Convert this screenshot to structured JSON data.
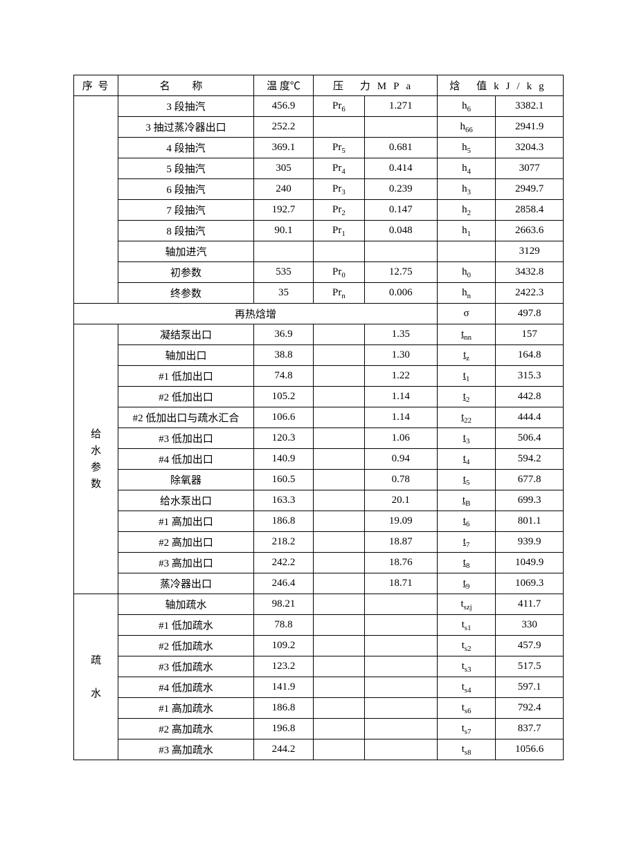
{
  "header": {
    "seq": "序 号",
    "name": "名      称",
    "temp": "温 度℃",
    "pressure": "压   力MPa",
    "enthalpy": "焓   值kJ/kg"
  },
  "section1": [
    {
      "name": "3 段抽汽",
      "temp": "456.9",
      "psym": "Pr",
      "psub": "6",
      "pval": "1.271",
      "hsym": "h",
      "hsub": "6",
      "hval": "3382.1"
    },
    {
      "name": "3 抽过蒸冷器出口",
      "temp": "252.2",
      "psym": "",
      "psub": "",
      "pval": "",
      "hsym": "h",
      "hsub": "66",
      "hval": "2941.9"
    },
    {
      "name": "4 段抽汽",
      "temp": "369.1",
      "psym": "Pr",
      "psub": "5",
      "pval": "0.681",
      "hsym": "h",
      "hsub": "5",
      "hval": "3204.3"
    },
    {
      "name": "5 段抽汽",
      "temp": "305",
      "psym": "Pr",
      "psub": "4",
      "pval": "0.414",
      "hsym": "h",
      "hsub": "4",
      "hval": "3077"
    },
    {
      "name": "6 段抽汽",
      "temp": "240",
      "psym": "Pr",
      "psub": "3",
      "pval": "0.239",
      "hsym": "h",
      "hsub": "3",
      "hval": "2949.7"
    },
    {
      "name": "7 段抽汽",
      "temp": "192.7",
      "psym": "Pr",
      "psub": "2",
      "pval": "0.147",
      "hsym": "h",
      "hsub": "2",
      "hval": "2858.4"
    },
    {
      "name": "8 段抽汽",
      "temp": "90.1",
      "psym": "Pr",
      "psub": "1",
      "pval": "0.048",
      "hsym": "h",
      "hsub": "1",
      "hval": "2663.6"
    },
    {
      "name": "轴加进汽",
      "temp": "",
      "psym": "",
      "psub": "",
      "pval": "",
      "hsym": "",
      "hsub": "",
      "hval": "3129"
    },
    {
      "name": "初参数",
      "temp": "535",
      "psym": "Pr",
      "psub": "0",
      "pval": "12.75",
      "hsym": "h",
      "hsub": "0",
      "hval": "3432.8"
    },
    {
      "name": "终参数",
      "temp": "35",
      "psym": "Pr",
      "psub": "n",
      "pval": "0.006",
      "hsym": "h",
      "hsub": "n",
      "hval": "2422.3"
    }
  ],
  "reheat": {
    "name": "再热焓增",
    "hsym": "σ",
    "hval": "497.8"
  },
  "section2": {
    "label": "给\n水\n参\n数",
    "rows": [
      {
        "name": "凝结泵出口",
        "temp": "36.9",
        "pval": "1.35",
        "hsub": "nn",
        "hval": "157"
      },
      {
        "name": "轴加出口",
        "temp": "38.8",
        "pval": "1.30",
        "hsub": "z",
        "hval": "164.8"
      },
      {
        "name": "#1 低加出口",
        "temp": "74.8",
        "pval": "1.22",
        "hsub": "1",
        "hval": "315.3"
      },
      {
        "name": "#2 低加出口",
        "temp": "105.2",
        "pval": "1.14",
        "hsub": "2",
        "hval": "442.8"
      },
      {
        "name": "#2 低加出口与疏水汇合",
        "temp": "106.6",
        "pval": "1.14",
        "hsub": "22",
        "hval": "444.4"
      },
      {
        "name": "#3 低加出口",
        "temp": "120.3",
        "pval": "1.06",
        "hsub": "3",
        "hval": "506.4"
      },
      {
        "name": "#4 低加出口",
        "temp": "140.9",
        "pval": "0.94",
        "hsub": "4",
        "hval": "594.2"
      },
      {
        "name": "除氧器",
        "temp": "160.5",
        "pval": "0.78",
        "hsub": "5",
        "hval": "677.8"
      },
      {
        "name": "给水泵出口",
        "temp": "163.3",
        "pval": "20.1",
        "hsub": "B",
        "hval": "699.3"
      },
      {
        "name": "#1 高加出口",
        "temp": "186.8",
        "pval": "19.09",
        "hsub": "6",
        "hval": "801.1"
      },
      {
        "name": "#2 高加出口",
        "temp": "218.2",
        "pval": "18.87",
        "hsub": "7",
        "hval": "939.9"
      },
      {
        "name": "#3 高加出口",
        "temp": "242.2",
        "pval": "18.76",
        "hsub": "8",
        "hval": "1049.9"
      },
      {
        "name": "蒸冷器出口",
        "temp": "246.4",
        "pval": "18.71",
        "hsub": "9",
        "hval": "1069.3"
      }
    ]
  },
  "section3": {
    "label": "疏\n\n水",
    "rows": [
      {
        "name": "轴加疏水",
        "temp": "98.21",
        "hsub": "szj",
        "hval": "411.7"
      },
      {
        "name": "#1 低加疏水",
        "temp": "78.8",
        "hsub": "s1",
        "hval": "330"
      },
      {
        "name": "#2 低加疏水",
        "temp": "109.2",
        "hsub": "s2",
        "hval": "457.9"
      },
      {
        "name": "#3 低加疏水",
        "temp": "123.2",
        "hsub": "s3",
        "hval": "517.5"
      },
      {
        "name": "#4 低加疏水",
        "temp": "141.9",
        "hsub": "s4",
        "hval": "597.1"
      },
      {
        "name": "#1 高加疏水",
        "temp": "186.8",
        "hsub": "s6",
        "hval": "792.4"
      },
      {
        "name": "#2 高加疏水",
        "temp": "196.8",
        "hsub": "s7",
        "hval": "837.7"
      },
      {
        "name": "#3 高加疏水",
        "temp": "244.2",
        "hsub": "s8",
        "hval": "1056.6"
      }
    ]
  }
}
